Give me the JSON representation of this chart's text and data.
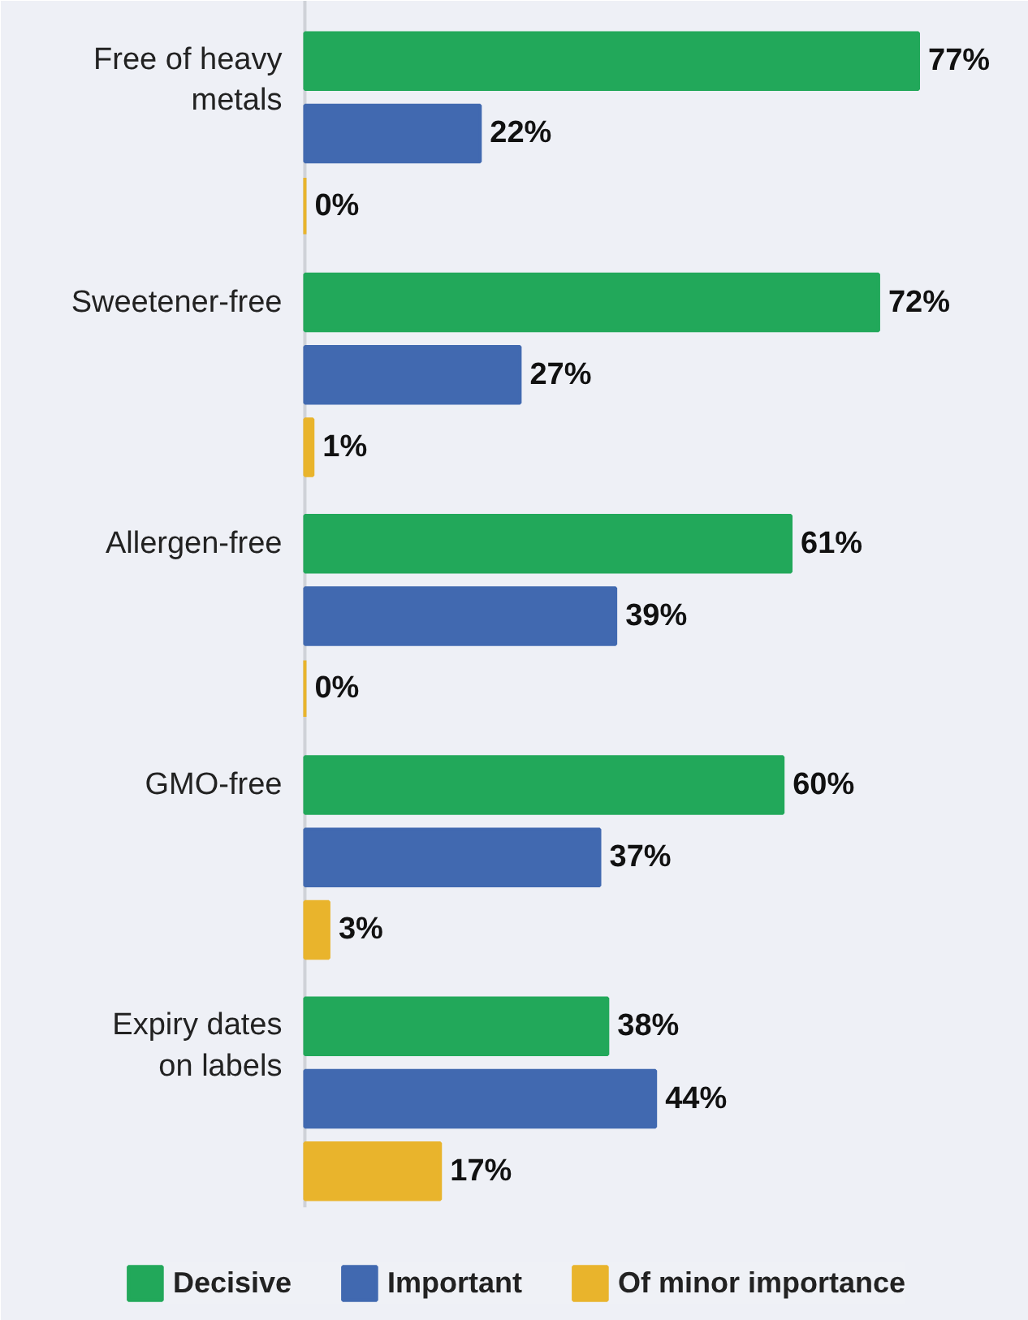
{
  "chart_data": {
    "type": "bar",
    "orientation": "horizontal",
    "categories": [
      "Free of heavy metals",
      "Sweetener-free",
      "Allergen-free",
      "GMO-free",
      "Expiry dates on labels"
    ],
    "series": [
      {
        "name": "Decisive",
        "color": "#22a85a",
        "values": [
          77,
          72,
          61,
          60,
          38
        ],
        "value_labels": [
          "77%",
          "72%",
          "61%",
          "60%",
          "38%"
        ]
      },
      {
        "name": "Important",
        "color": "#4169b0",
        "values": [
          22,
          27,
          39,
          37,
          44
        ],
        "value_labels": [
          "22%",
          "27%",
          "39%",
          "37%",
          "44%"
        ]
      },
      {
        "name": "Of minor importance",
        "color": "#e9b42c",
        "values": [
          0,
          1,
          0,
          3,
          17
        ],
        "value_labels": [
          "0%",
          "1%",
          "0%",
          "3%",
          "17%"
        ]
      }
    ],
    "legend": "bottom",
    "grid": false
  }
}
